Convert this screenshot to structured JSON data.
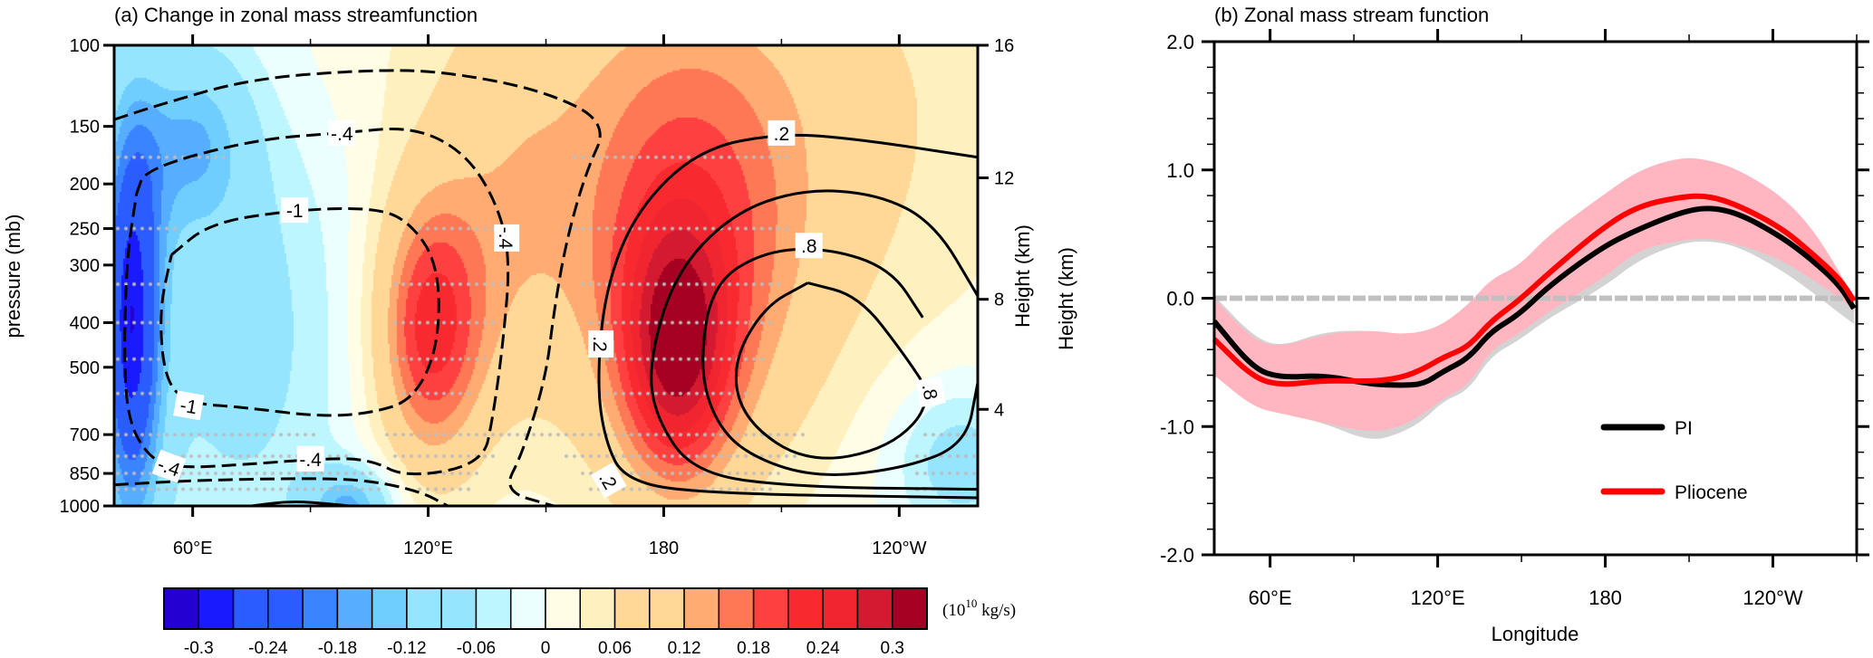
{
  "chart_data": [
    {
      "type": "heatmap",
      "title": "(a) Change in zonal mass streamfunction",
      "ylabel": "pressure (mb)",
      "y2label": "Height (km)",
      "xlim": [
        40,
        260
      ],
      "ylim_pressure": [
        1000,
        100
      ],
      "xticks": [
        {
          "lon": 60,
          "label": "60°E"
        },
        {
          "lon": 120,
          "label": "120°E"
        },
        {
          "lon": 180,
          "label": "180"
        },
        {
          "lon": 240,
          "label": "120°W"
        }
      ],
      "yticks": [
        100,
        150,
        200,
        250,
        300,
        400,
        500,
        700,
        850,
        1000
      ],
      "height_ticks": [
        {
          "label": "16",
          "p": 100
        },
        {
          "label": "12",
          "p": 194
        },
        {
          "label": "8",
          "p": 356
        },
        {
          "label": "4",
          "p": 617
        }
      ],
      "colorbar": {
        "levels_min": -0.33,
        "levels_step": 0.03,
        "colors": [
          "#2400d2",
          "#1a1aff",
          "#2b5cff",
          "#2b5cff",
          "#3a85ff",
          "#57adff",
          "#70ceff",
          "#96e5ff",
          "#96e5ff",
          "#bdf6ff",
          "#ebffff",
          "#fffde6",
          "#fff0c0",
          "#ffd898",
          "#ffd898",
          "#ffab72",
          "#ff7855",
          "#ff4040",
          "#f82a30",
          "#f02530",
          "#d41a30",
          "#a60022"
        ],
        "tick_labels": [
          "-0.3",
          "-0.24",
          "-0.18",
          "-0.12",
          "-0.06",
          "0",
          "0.06",
          "0.12",
          "0.18",
          "0.24",
          "0.3"
        ],
        "unit_base": "(10",
        "unit_exp": "10",
        "unit_suffix": " kg/s)"
      },
      "contour_labels": [
        {
          "text": "-.4",
          "lon": 98,
          "p": 155,
          "rot": 0
        },
        {
          "text": "-.4",
          "lon": 140,
          "p": 262,
          "rot": 90
        },
        {
          "text": "-1",
          "lon": 86,
          "p": 228,
          "rot": 0
        },
        {
          "text": "-1",
          "lon": 59,
          "p": 605,
          "rot": 10
        },
        {
          "text": "-.4",
          "lon": 90,
          "p": 790,
          "rot": 0
        },
        {
          "text": "-.4",
          "lon": 54,
          "p": 820,
          "rot": 20
        },
        {
          "text": ".2",
          "lon": 210,
          "p": 155,
          "rot": 0
        },
        {
          "text": ".2",
          "lon": 164,
          "p": 445,
          "rot": 90
        },
        {
          "text": ".2",
          "lon": 166,
          "p": 880,
          "rot": 60
        },
        {
          "text": ".8",
          "lon": 217,
          "p": 272,
          "rot": 0
        },
        {
          "text": ".8",
          "lon": 248,
          "p": 565,
          "rot": 80
        }
      ]
    },
    {
      "type": "line",
      "title": "(b) Zonal mass stream function",
      "xlabel": "Longitude",
      "ylabel": "Height (km)",
      "xlim": [
        40,
        270
      ],
      "ylim": [
        -2.0,
        2.0
      ],
      "yticks": [
        "-2.0",
        "-1.0",
        "0.0",
        "1.0",
        "2.0"
      ],
      "xticks": [
        {
          "lon": 60,
          "label": "60°E"
        },
        {
          "lon": 120,
          "label": "120°E"
        },
        {
          "lon": 180,
          "label": "180"
        },
        {
          "lon": 240,
          "label": "120°W"
        }
      ],
      "x": [
        40,
        54,
        64,
        79,
        96,
        107,
        115,
        122,
        131,
        139,
        149,
        160,
        179,
        192,
        207,
        217,
        228,
        243,
        254,
        264,
        269
      ],
      "series": [
        {
          "name": "PI",
          "color": "#000000",
          "values": [
            -0.18,
            -0.55,
            -0.62,
            -0.6,
            -0.67,
            -0.68,
            -0.67,
            -0.57,
            -0.47,
            -0.26,
            -0.13,
            0.1,
            0.4,
            0.54,
            0.67,
            0.71,
            0.66,
            0.48,
            0.3,
            0.1,
            -0.08
          ],
          "band_upper": [
            0.02,
            -0.3,
            -0.38,
            -0.26,
            -0.25,
            -0.28,
            -0.3,
            -0.22,
            -0.1,
            0.05,
            0.1,
            0.3,
            0.6,
            0.8,
            0.9,
            0.9,
            0.85,
            0.65,
            0.4,
            0.1,
            -0.1
          ],
          "band_lower": [
            -0.05,
            -0.8,
            -0.9,
            -0.97,
            -1.12,
            -1.05,
            -0.95,
            -0.8,
            -0.72,
            -0.45,
            -0.33,
            -0.15,
            0.08,
            0.3,
            0.43,
            0.45,
            0.4,
            0.22,
            0.05,
            -0.12,
            -0.2
          ],
          "band_color": "#d3d3d3"
        },
        {
          "name": "Pliocene",
          "color": "#ff0000",
          "values": [
            -0.32,
            -0.62,
            -0.68,
            -0.64,
            -0.65,
            -0.62,
            -0.55,
            -0.46,
            -0.38,
            -0.18,
            -0.02,
            0.2,
            0.55,
            0.72,
            0.79,
            0.8,
            0.72,
            0.55,
            0.35,
            0.15,
            -0.02
          ],
          "band_upper": [
            0.0,
            -0.33,
            -0.38,
            -0.28,
            -0.25,
            -0.28,
            -0.26,
            -0.2,
            -0.05,
            0.15,
            0.25,
            0.5,
            0.8,
            1.0,
            1.1,
            1.08,
            1.0,
            0.8,
            0.55,
            0.2,
            0.0
          ],
          "band_lower": [
            -0.6,
            -0.85,
            -0.9,
            -0.97,
            -1.05,
            -1.0,
            -0.9,
            -0.78,
            -0.68,
            -0.4,
            -0.28,
            -0.1,
            0.15,
            0.38,
            0.45,
            0.47,
            0.42,
            0.3,
            0.15,
            0.0,
            -0.1
          ],
          "band_color": "#ffb6c1"
        }
      ],
      "zero_line_color": "#c0c0c0",
      "legend": {
        "placement": "lower-right",
        "entries": [
          "PI",
          "Pliocene"
        ]
      }
    }
  ]
}
